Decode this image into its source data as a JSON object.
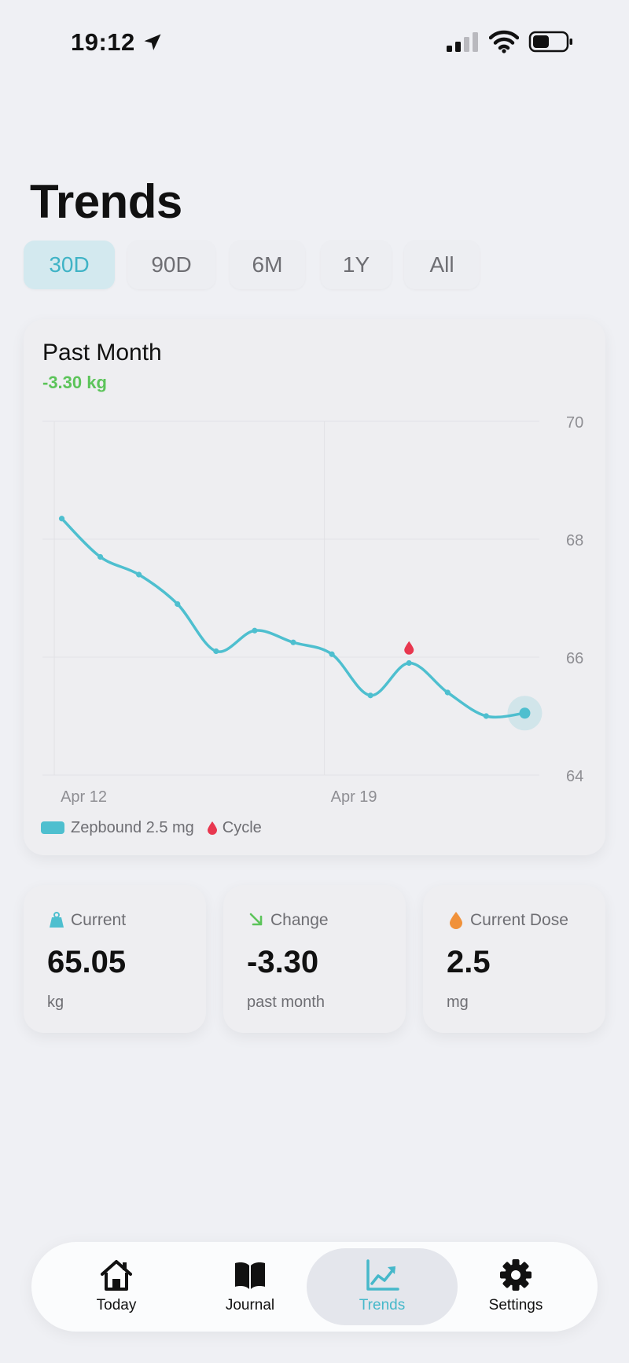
{
  "status": {
    "time": "19:12"
  },
  "page": {
    "title": "Trends"
  },
  "range_tabs": [
    {
      "label": "30D",
      "active": true
    },
    {
      "label": "90D",
      "active": false
    },
    {
      "label": "6M",
      "active": false
    },
    {
      "label": "1Y",
      "active": false
    },
    {
      "label": "All",
      "active": false
    }
  ],
  "chart_card": {
    "title": "Past Month",
    "delta": "-3.30 kg",
    "legend": {
      "series": "Zepbound 2.5 mg",
      "marker": "Cycle"
    }
  },
  "chart_data": {
    "type": "line",
    "title": "Past Month",
    "xlabel": "",
    "ylabel": "",
    "ylim": [
      64,
      70
    ],
    "yticks": [
      64,
      66,
      68,
      70
    ],
    "x_tick_labels": [
      {
        "label": "Apr 12",
        "day": 12
      },
      {
        "label": "Apr 19",
        "day": 19
      }
    ],
    "series": [
      {
        "name": "Zepbound 2.5 mg",
        "color": "#4ebfcf",
        "points": [
          {
            "day": 11.5,
            "value": 68.35
          },
          {
            "day": 12.5,
            "value": 67.7
          },
          {
            "day": 13.5,
            "value": 67.4
          },
          {
            "day": 14.5,
            "value": 66.9
          },
          {
            "day": 15.5,
            "value": 66.1
          },
          {
            "day": 16.5,
            "value": 66.45
          },
          {
            "day": 17.5,
            "value": 66.25
          },
          {
            "day": 18.5,
            "value": 66.05
          },
          {
            "day": 19.5,
            "value": 65.35
          },
          {
            "day": 20.5,
            "value": 65.9
          },
          {
            "day": 21.5,
            "value": 65.4
          },
          {
            "day": 22.5,
            "value": 65.0
          },
          {
            "day": 23.5,
            "value": 65.05
          }
        ]
      }
    ],
    "cycle_markers": [
      {
        "day": 20.5,
        "value": 66.15
      }
    ],
    "grid": true,
    "legend_position": "bottom-left",
    "highlight_last_point": true
  },
  "stats": [
    {
      "label": "Current",
      "value": "65.05",
      "unit": "kg",
      "icon": "scale-icon",
      "color": "#4ebfcf"
    },
    {
      "label": "Change",
      "value": "-3.30",
      "unit": "past month",
      "icon": "arrow-down-right-icon",
      "color": "#5cc45a"
    },
    {
      "label": "Current Dose",
      "value": "2.5",
      "unit": "mg",
      "icon": "drop-icon",
      "color": "#f0913a"
    }
  ],
  "tab_bar": [
    {
      "label": "Today",
      "icon": "house-icon",
      "active": false
    },
    {
      "label": "Journal",
      "icon": "book-icon",
      "active": false
    },
    {
      "label": "Trends",
      "icon": "chart-icon",
      "active": true
    },
    {
      "label": "Settings",
      "icon": "gear-icon",
      "active": false
    }
  ],
  "colors": {
    "accent": "#4ebfcf",
    "positive": "#5cc45a",
    "cycle": "#e8374f",
    "dose": "#f0913a"
  }
}
